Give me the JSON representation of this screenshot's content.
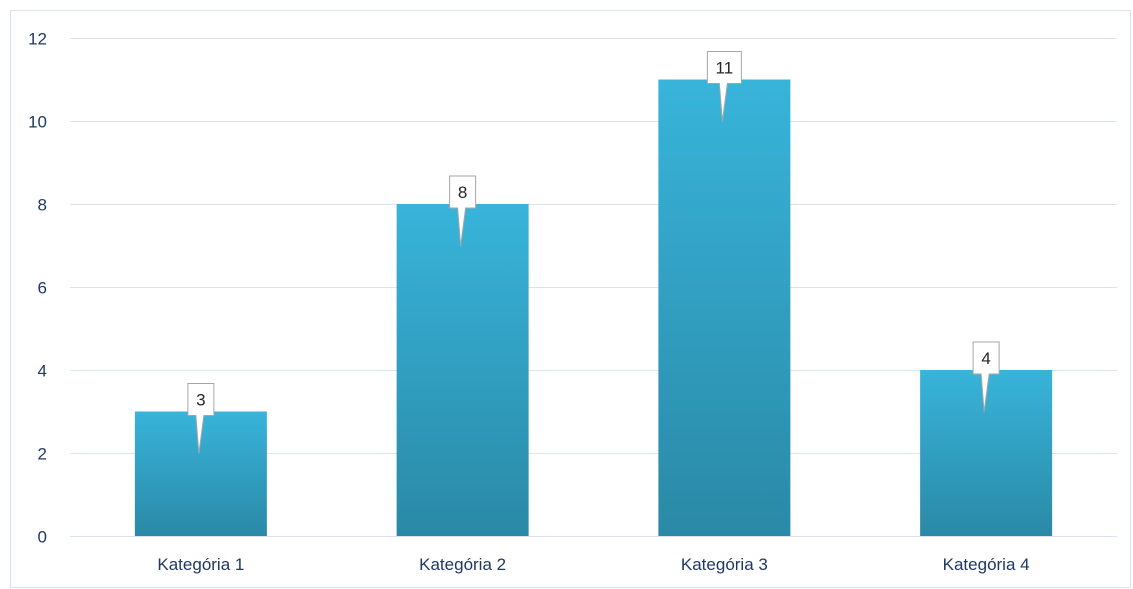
{
  "chart_data": {
    "type": "bar",
    "title": "",
    "xlabel": "",
    "ylabel": "",
    "categories": [
      "Kategória 1",
      "Kategória 2",
      "Kategória 3",
      "Kategória 4"
    ],
    "values": [
      3,
      8,
      11,
      4
    ],
    "data_labels": [
      "3",
      "8",
      "11",
      "4"
    ],
    "ylim": [
      0,
      12
    ],
    "yticks": [
      0,
      2,
      4,
      6,
      8,
      10,
      12
    ],
    "ytick_labels": [
      "0",
      "2",
      "4",
      "6",
      "8",
      "10",
      "12"
    ],
    "grid": true,
    "legend": "none",
    "colors": {
      "bar_top": "#38b4da",
      "bar_bottom": "#2a89a6",
      "grid": "#d9e4f0",
      "text": "#1f3864",
      "callout_border": "#a6a6a6"
    }
  }
}
